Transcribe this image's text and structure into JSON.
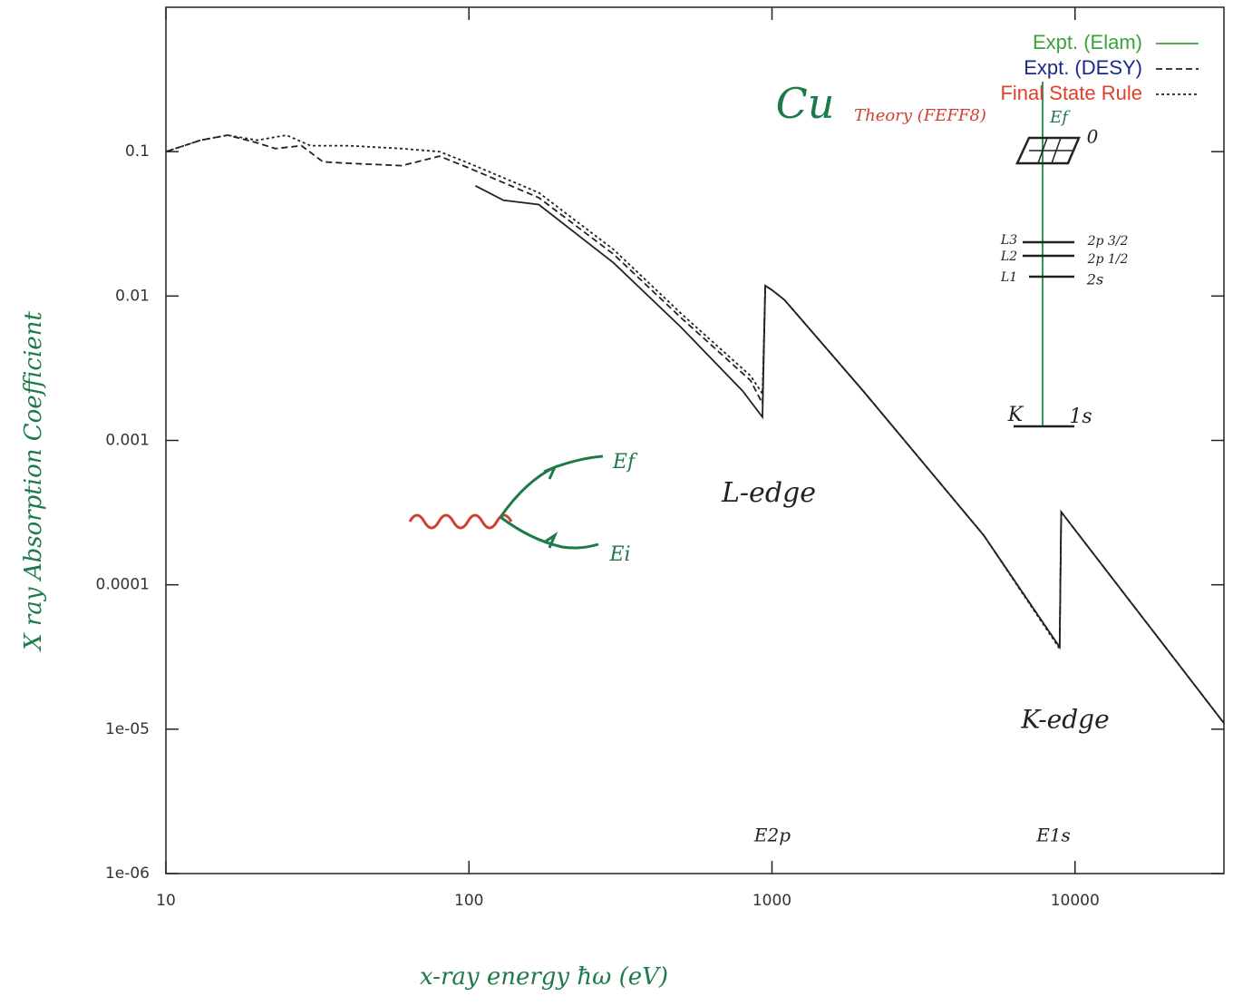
{
  "chart_data": {
    "type": "line",
    "x_label": "x-ray energy ħω (eV)",
    "y_label": "X ray Absorption Coefficient",
    "xscale": "log",
    "yscale": "log",
    "xlim": [
      10,
      31000
    ],
    "ylim": [
      1e-06,
      1
    ],
    "xticks": [
      10,
      100,
      1000,
      10000
    ],
    "yticks": [
      {
        "value": 1e-06,
        "label": "1e-06"
      },
      {
        "value": 1e-05,
        "label": "1e-05"
      },
      0.0001,
      0.001,
      0.01,
      0.1
    ],
    "legend": "upper right",
    "series": [
      {
        "name": "Expt. (Elam)",
        "color": "#3aa23a",
        "dash": "solid",
        "x": [
          105,
          130,
          170,
          300,
          500,
          800,
          930,
          950,
          1000,
          1100,
          2000,
          5000,
          8900,
          9000,
          31000
        ],
        "values": [
          0.058,
          0.046,
          0.043,
          0.017,
          0.0061,
          0.0022,
          0.00145,
          0.0118,
          0.011,
          0.0094,
          0.0022,
          0.00022,
          3.7e-05,
          0.00032,
          1.1e-05
        ]
      },
      {
        "name": "Expt. (DESY)",
        "color": "#1a2a8a",
        "dash": "dashed",
        "x": [
          10,
          13,
          16,
          20,
          23,
          28,
          33,
          40,
          60,
          80,
          100,
          170,
          300,
          500,
          850,
          930,
          950,
          1000,
          1100,
          2000,
          5000,
          8900,
          9000,
          31000
        ],
        "values": [
          0.1,
          0.12,
          0.13,
          0.115,
          0.105,
          0.11,
          0.085,
          0.083,
          0.08,
          0.093,
          0.077,
          0.048,
          0.0195,
          0.0071,
          0.0026,
          0.0018,
          0.0118,
          0.011,
          0.0094,
          0.0022,
          0.00022,
          3.7e-05,
          0.00032,
          1.1e-05
        ]
      },
      {
        "name": "Final State Rule",
        "color": "#e0402a",
        "dash": "dotted",
        "x": [
          10,
          13,
          16,
          20,
          25,
          30,
          40,
          60,
          80,
          100,
          170,
          300,
          500,
          850,
          930,
          950,
          1000,
          1100,
          2000,
          5000,
          8900,
          9000,
          31000
        ],
        "values": [
          0.1,
          0.12,
          0.13,
          0.12,
          0.13,
          0.11,
          0.11,
          0.105,
          0.1,
          0.083,
          0.052,
          0.021,
          0.0076,
          0.0028,
          0.0021,
          0.0118,
          0.011,
          0.0094,
          0.0022,
          0.00022,
          3.6e-05,
          0.00032,
          1.1e-05
        ]
      }
    ],
    "annotations": [
      "Cu",
      "Theory (FEFF8)",
      "L-edge",
      "K-edge",
      "E2p",
      "E1s",
      "Ef",
      "Ei",
      "0",
      "2p 3/2",
      "2p 1/2",
      "2s",
      "1s",
      "L3",
      "L2",
      "L1",
      "K",
      "Ef"
    ]
  }
}
